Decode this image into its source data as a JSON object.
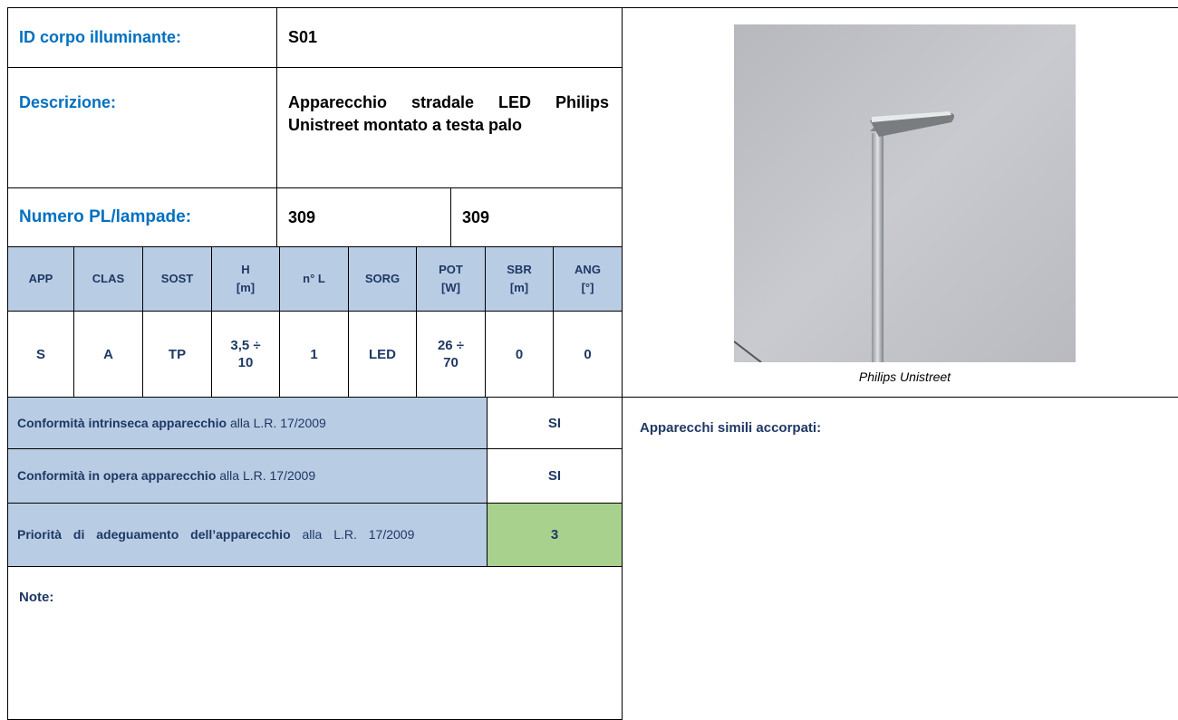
{
  "id": {
    "label": "ID corpo illuminante:",
    "value": "S01"
  },
  "description": {
    "label": "Descrizione:",
    "value": "Apparecchio stradale LED Philips Unistreet montato a testa palo"
  },
  "lamps": {
    "label": "Numero PL/lampade:",
    "values": [
      "309",
      "309"
    ]
  },
  "specs": {
    "headers": [
      {
        "name": "APP"
      },
      {
        "name": "CLAS"
      },
      {
        "name": "SOST"
      },
      {
        "name": "H",
        "unit": "[m]"
      },
      {
        "name": "n° L"
      },
      {
        "name": "SORG"
      },
      {
        "name": "POT",
        "unit": "[W]"
      },
      {
        "name": "SBR",
        "unit": "[m]"
      },
      {
        "name": "ANG",
        "unit": "[°]"
      }
    ],
    "values": [
      "S",
      "A",
      "TP",
      "3,5 ÷ 10",
      "1",
      "LED",
      "26 ÷ 70",
      "0",
      "0"
    ]
  },
  "compliance": [
    {
      "label_bold": "Conformità intrinseca apparecchio",
      "label_rest": "alla L.R. 17/2009",
      "value": "SI"
    },
    {
      "label_bold": "Conformità in opera apparecchio",
      "label_rest": "alla L.R. 17/2009",
      "value": "SI"
    },
    {
      "label_bold": "Priorità di adeguamento dell’apparecchio",
      "label_rest": "alla L.R. 17/2009",
      "value": "3"
    }
  ],
  "notes": {
    "label": "Note:"
  },
  "photo": {
    "caption": "Philips Unistreet"
  },
  "similar": {
    "label": "Apparecchi simili accorpati:"
  }
}
